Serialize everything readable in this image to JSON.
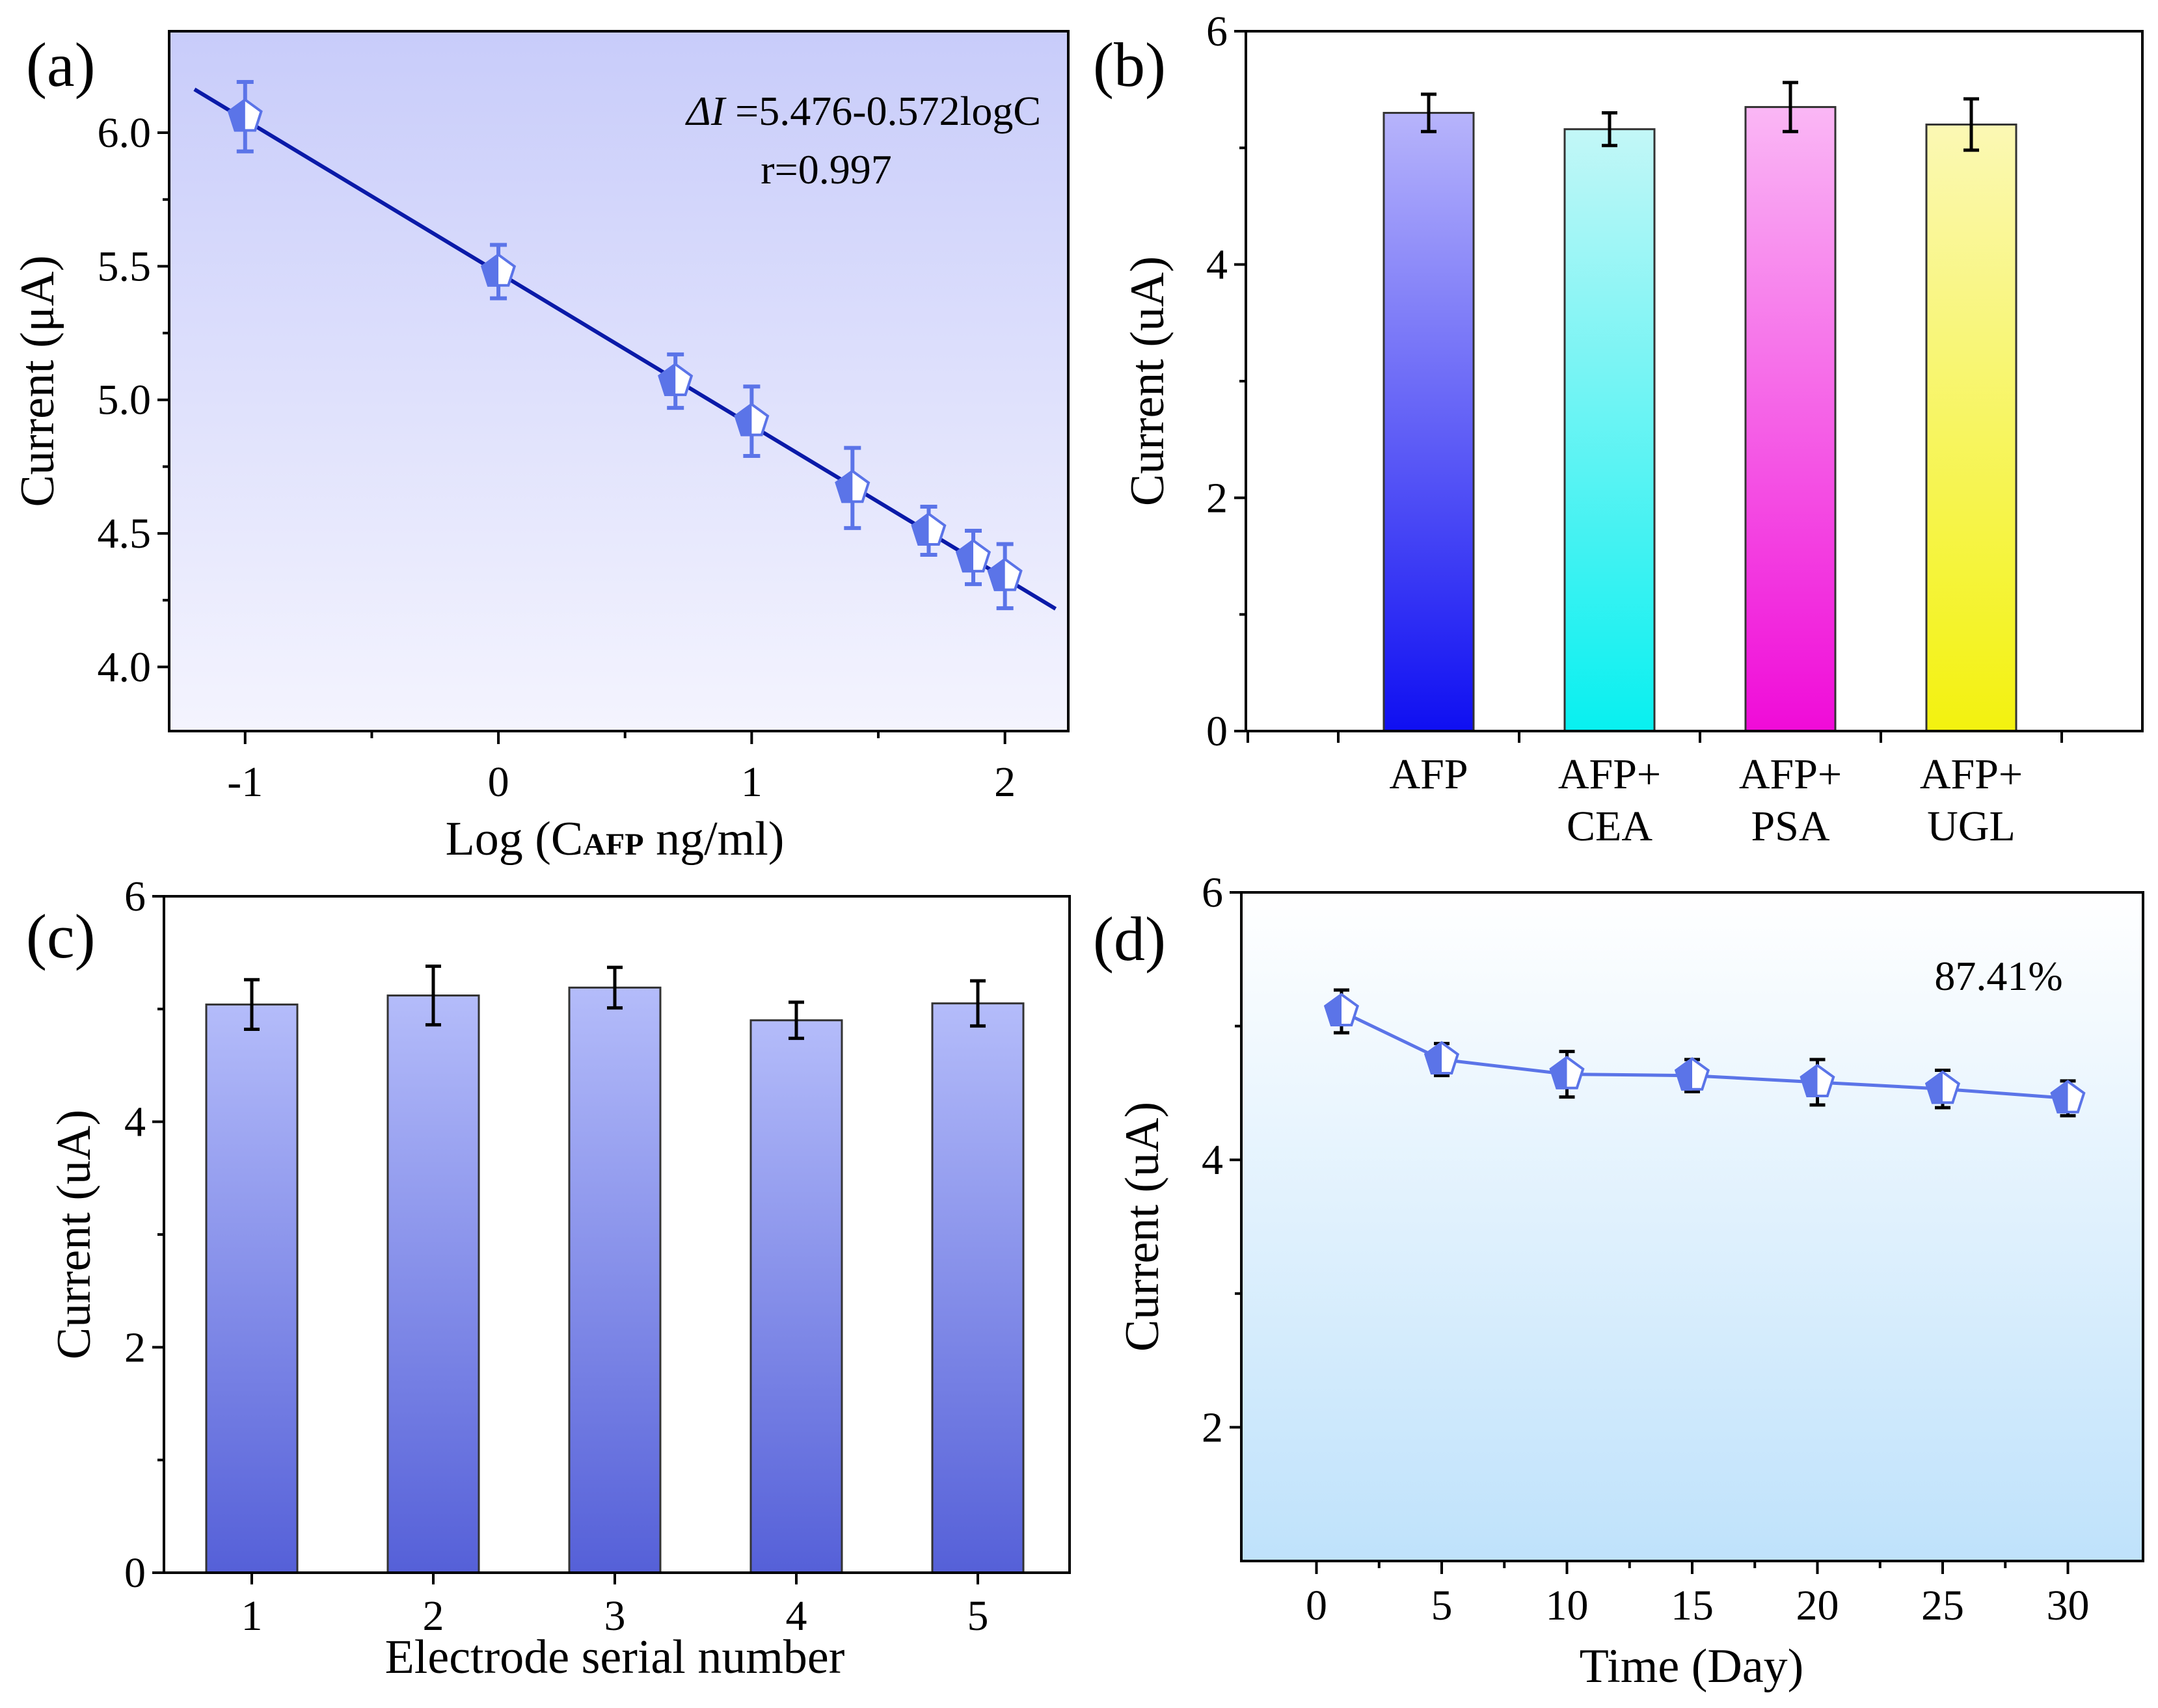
{
  "colors": {
    "marker_blue": "#5b74e8",
    "fit_line": "#0a1aa8",
    "panel_a_bg_top": "#c8ccfa",
    "panel_a_bg_bottom": "#f4f4fe",
    "panel_d_bg_top": "#ffffff",
    "panel_d_bg_bottom": "#bfe2fb",
    "bar_c_top": "#b4bcfa",
    "bar_c_bottom": "#5560d8"
  },
  "chart_data": [
    {
      "panel": "(a)",
      "type": "scatter",
      "xlabel_prefix": "Log (C",
      "xlabel_sub": "AFP",
      "xlabel_suffix": " ng/ml)",
      "ylabel": "Current (μA)",
      "xlim": [
        -1.3,
        2.25
      ],
      "ylim": [
        3.76,
        6.38
      ],
      "xticks": [
        -1,
        0,
        1,
        2
      ],
      "xtick_labels": [
        "-1",
        "0",
        "1",
        "2"
      ],
      "yticks": [
        4.0,
        4.5,
        5.0,
        5.5,
        6.0
      ],
      "ytick_labels": [
        "4.0",
        "4.5",
        "5.0",
        "5.5",
        "6.0"
      ],
      "x": [
        -1,
        0,
        0.699,
        1,
        1.398,
        1.699,
        1.875,
        2
      ],
      "y": [
        6.06,
        5.48,
        5.07,
        4.92,
        4.67,
        4.51,
        4.41,
        4.34
      ],
      "err": [
        0.13,
        0.1,
        0.1,
        0.13,
        0.15,
        0.09,
        0.1,
        0.12
      ],
      "fit": {
        "intercept": 5.476,
        "slope": -0.572,
        "x_range": [
          -1.2,
          2.2
        ]
      },
      "equation_var": "ΔI",
      "equation_rest": " =5.476-0.572logC",
      "r_text": "r=0.997"
    },
    {
      "panel": "(b)",
      "type": "bar",
      "ylabel": "Current (uA)",
      "ylim": [
        0,
        6
      ],
      "yticks": [
        0,
        2,
        4,
        6
      ],
      "ytick_labels": [
        "0",
        "2",
        "4",
        "6"
      ],
      "categories": [
        [
          "AFP"
        ],
        [
          "AFP+",
          "CEA"
        ],
        [
          "AFP+",
          "PSA"
        ],
        [
          "AFP+",
          "UGL"
        ]
      ],
      "values": [
        5.3,
        5.16,
        5.35,
        5.2
      ],
      "err": [
        0.16,
        0.14,
        0.21,
        0.22
      ],
      "bar_colors": [
        {
          "top": "#b7b4fb",
          "bottom": "#0f0ff2"
        },
        {
          "top": "#c3f7f7",
          "bottom": "#08f0f0"
        },
        {
          "top": "#fab7f5",
          "bottom": "#f00bd8"
        },
        {
          "top": "#fbf8b4",
          "bottom": "#f3f20f"
        }
      ]
    },
    {
      "panel": "(c)",
      "type": "bar",
      "xlabel": "Electrode serial number",
      "ylabel": "Current (uA)",
      "ylim": [
        0,
        6
      ],
      "yticks": [
        0,
        2,
        4,
        6
      ],
      "ytick_labels": [
        "0",
        "2",
        "4",
        "6"
      ],
      "categories": [
        "1",
        "2",
        "3",
        "4",
        "5"
      ],
      "values": [
        5.04,
        5.12,
        5.19,
        4.9,
        5.05
      ],
      "err": [
        0.22,
        0.26,
        0.18,
        0.16,
        0.2
      ]
    },
    {
      "panel": "(d)",
      "type": "line",
      "xlabel": "Time (Day)",
      "ylabel": "Current (uA)",
      "xlim": [
        -3,
        33
      ],
      "ylim": [
        1.0,
        6.0
      ],
      "xticks": [
        0,
        5,
        10,
        15,
        20,
        25,
        30
      ],
      "xtick_labels": [
        "0",
        "5",
        "10",
        "15",
        "20",
        "25",
        "30"
      ],
      "yticks": [
        2,
        4,
        6
      ],
      "ytick_labels": [
        "2",
        "4",
        "6"
      ],
      "x": [
        1,
        5,
        10,
        15,
        20,
        25,
        30
      ],
      "y": [
        5.11,
        4.75,
        4.64,
        4.63,
        4.58,
        4.53,
        4.46
      ],
      "err": [
        0.16,
        0.12,
        0.17,
        0.12,
        0.17,
        0.14,
        0.13
      ],
      "annotation": "87.41%"
    }
  ]
}
